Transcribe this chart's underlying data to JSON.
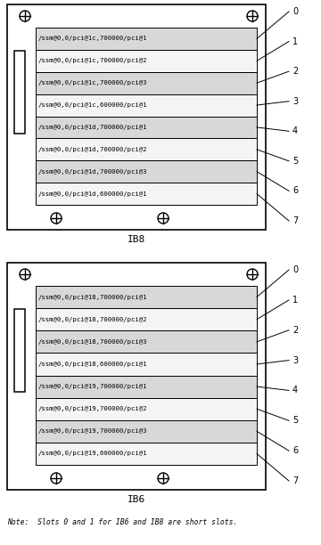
{
  "ib8_slots": [
    "/ssm@0,0/pci@1c,700000/pci@1",
    "/ssm@0,0/pci@1c,700000/pci@2",
    "/ssm@0,0/pci@1c,700000/pci@3",
    "/ssm@0,0/pci@1c,600000/pci@1",
    "/ssm@0,0/pci@1d,700000/pci@1",
    "/ssm@0,0/pci@1d,700000/pci@2",
    "/ssm@0,0/pci@1d,700000/pci@3",
    "/ssm@0,0/pci@1d,600000/pci@1"
  ],
  "ib6_slots": [
    "/ssm@0,0/pci@18,700000/pci@1",
    "/ssm@0,0/pci@18,700000/pci@2",
    "/ssm@0,0/pci@18,700000/pci@3",
    "/ssm@0,0/pci@18,600000/pci@1",
    "/ssm@0,0/pci@19,700000/pci@1",
    "/ssm@0,0/pci@19,700000/pci@2",
    "/ssm@0,0/pci@19,700000/pci@3",
    "/ssm@0,0/pci@19,600000/pci@1"
  ],
  "slot_numbers": [
    "0",
    "1",
    "2",
    "3",
    "4",
    "5",
    "6",
    "7"
  ],
  "ib8_label": "IB8",
  "ib6_label": "IB6",
  "note": "Note:  Slots 0 and 1 for IB6 and IB8 are short slots.",
  "bg_color": "#ffffff",
  "box_color": "#000000",
  "text_color": "#000000",
  "slot_fill_even": "#d8d8d8",
  "slot_fill_odd": "#f4f4f4",
  "figw": 3.6,
  "figh": 6.12,
  "dpi": 100
}
